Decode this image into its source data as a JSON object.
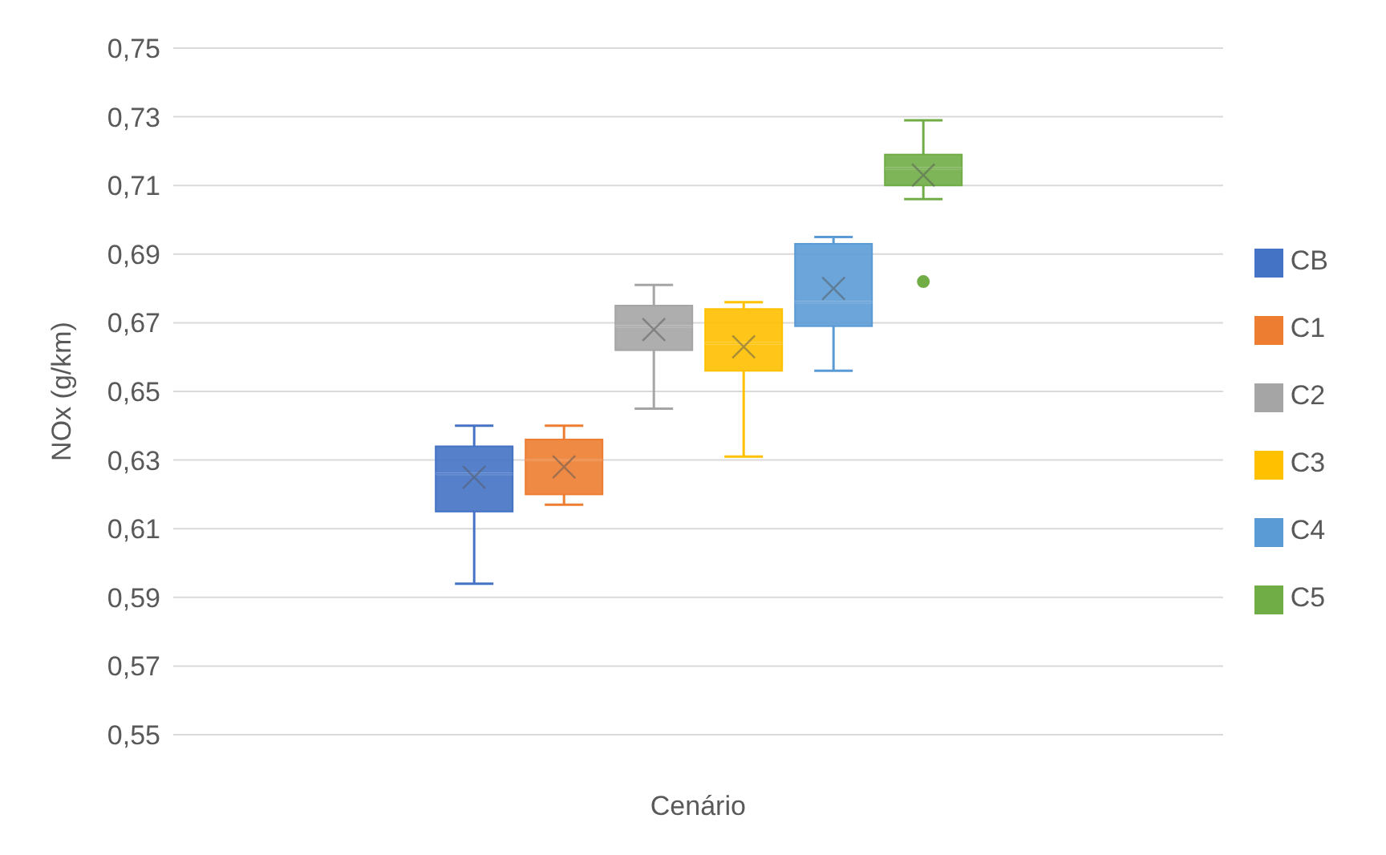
{
  "chart_data": {
    "type": "box",
    "xlabel": "Cenário",
    "ylabel": "NOx (g/km)",
    "categories": [
      null
    ],
    "ylim": [
      0.55,
      0.75
    ],
    "yticks": [
      {
        "value": 0.55,
        "label": "0,55"
      },
      {
        "value": 0.57,
        "label": "0,57"
      },
      {
        "value": 0.59,
        "label": "0,59"
      },
      {
        "value": 0.61,
        "label": "0,61"
      },
      {
        "value": 0.63,
        "label": "0,63"
      },
      {
        "value": 0.65,
        "label": "0,65"
      },
      {
        "value": 0.67,
        "label": "0,67"
      },
      {
        "value": 0.69,
        "label": "0,69"
      },
      {
        "value": 0.71,
        "label": "0,71"
      },
      {
        "value": 0.73,
        "label": "0,73"
      },
      {
        "value": 0.75,
        "label": "0,75"
      }
    ],
    "grid": "y",
    "legend": "right",
    "series": [
      {
        "name": "CB",
        "color": "#4472c4",
        "boxes": [
          {
            "low": 0.594,
            "q1": 0.615,
            "median": 0.626,
            "q3": 0.634,
            "high": 0.64,
            "mean": 0.625
          }
        ]
      },
      {
        "name": "C1",
        "color": "#ed7d31",
        "boxes": [
          {
            "low": 0.617,
            "q1": 0.62,
            "median": 0.63,
            "q3": 0.636,
            "high": 0.64,
            "mean": 0.628
          }
        ]
      },
      {
        "name": "C2",
        "color": "#a5a5a5",
        "boxes": [
          {
            "low": 0.645,
            "q1": 0.662,
            "median": 0.669,
            "q3": 0.675,
            "high": 0.681,
            "mean": 0.668
          }
        ]
      },
      {
        "name": "C3",
        "color": "#ffc000",
        "boxes": [
          {
            "low": 0.631,
            "q1": 0.656,
            "median": 0.664,
            "q3": 0.674,
            "high": 0.676,
            "mean": 0.663
          }
        ]
      },
      {
        "name": "C4",
        "color": "#5b9bd5",
        "boxes": [
          {
            "low": 0.656,
            "q1": 0.669,
            "median": 0.676,
            "q3": 0.693,
            "high": 0.695,
            "mean": 0.68
          }
        ]
      },
      {
        "name": "C5",
        "color": "#70ad47",
        "boxes": [
          {
            "low": 0.706,
            "q1": 0.71,
            "median": 0.715,
            "q3": 0.719,
            "high": 0.729,
            "mean": 0.713,
            "outliers": [
              0.682
            ]
          }
        ]
      }
    ]
  }
}
